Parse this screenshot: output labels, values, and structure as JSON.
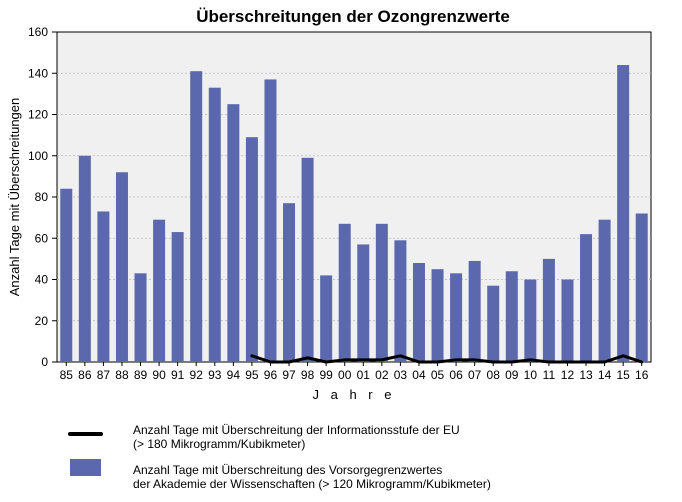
{
  "chart_data": {
    "type": "bar",
    "title": "Überschreitungen der Ozongrenzwerte",
    "xlabel": "J a h r e",
    "ylabel": "Anzahl Tage mit Überschreitungen",
    "ylim": [
      0,
      160
    ],
    "yticks": [
      0,
      20,
      40,
      60,
      80,
      100,
      120,
      140,
      160
    ],
    "grid": true,
    "legend_position": "bottom",
    "categories": [
      "85",
      "86",
      "87",
      "88",
      "89",
      "90",
      "91",
      "92",
      "93",
      "94",
      "95",
      "96",
      "97",
      "98",
      "99",
      "00",
      "01",
      "02",
      "03",
      "04",
      "05",
      "06",
      "07",
      "08",
      "09",
      "10",
      "11",
      "12",
      "13",
      "14",
      "15",
      "16"
    ],
    "series": [
      {
        "name": "Anzahl Tage mit Überschreitung des Vorsorgegrenzwertes der Akademie der Wissenschaften (> 120 Mikrogramm/Kubikmeter)",
        "type": "bar",
        "color": "#5b68ad",
        "values": [
          84,
          100,
          73,
          92,
          43,
          69,
          63,
          141,
          133,
          125,
          109,
          137,
          77,
          99,
          42,
          67,
          57,
          67,
          59,
          48,
          45,
          43,
          49,
          37,
          44,
          40,
          50,
          40,
          62,
          69,
          144,
          72
        ]
      },
      {
        "name": "Anzahl Tage mit Überschreitung der Informationsstufe der EU (> 180 Mikrogramm/Kubikmeter)",
        "type": "line",
        "color": "#000000",
        "values": [
          null,
          null,
          null,
          null,
          null,
          null,
          null,
          null,
          null,
          null,
          3,
          0,
          0,
          2,
          0,
          1,
          1,
          1,
          3,
          0,
          0,
          1,
          1,
          0,
          0,
          1,
          0,
          0,
          0,
          0,
          3,
          0
        ]
      }
    ]
  },
  "legend": {
    "line_text_1": "Anzahl Tage mit Überschreitung der Informationsstufe der EU",
    "line_text_2": "(> 180 Mikrogramm/Kubikmeter)",
    "bar_text_1": "Anzahl Tage mit Überschreitung des Vorsorgegrenzwertes",
    "bar_text_2": "der Akademie der Wissenschaften (> 120 Mikrogramm/Kubikmeter)"
  }
}
